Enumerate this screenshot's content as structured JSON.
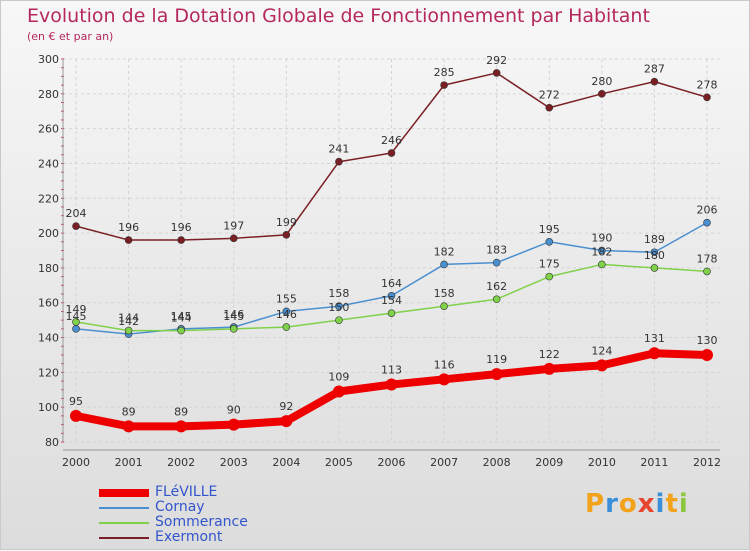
{
  "title": "Evolution de la Dotation Globale de Fonctionnement par Habitant",
  "subtitle": "(en € et par an)",
  "logo": {
    "text": "Proxiti",
    "colors": [
      "#f2a21b",
      "#3a8fd8",
      "#f2a21b",
      "#e8442f",
      "#3a8fd8",
      "#f2a21b",
      "#8cc63f"
    ]
  },
  "chart_data": {
    "type": "line",
    "x": [
      2000,
      2001,
      2002,
      2003,
      2004,
      2005,
      2006,
      2007,
      2008,
      2009,
      2010,
      2011,
      2012
    ],
    "ylim": [
      80,
      300
    ],
    "yticks": [
      80,
      100,
      120,
      140,
      160,
      180,
      200,
      220,
      240,
      260,
      280,
      300
    ],
    "grid": true,
    "legend_position": "bottom-left",
    "series": [
      {
        "name": "Exermont",
        "color": "#7a1f24",
        "values": [
          204,
          196,
          196,
          197,
          199,
          241,
          246,
          285,
          292,
          272,
          280,
          287,
          278
        ]
      },
      {
        "name": "Cornay",
        "color": "#4a8fcf",
        "values": [
          145,
          142,
          145,
          146,
          155,
          158,
          164,
          182,
          183,
          195,
          190,
          189,
          206
        ]
      },
      {
        "name": "Sommerance",
        "color": "#7fd14a",
        "values": [
          149,
          144,
          144,
          145,
          146,
          150,
          154,
          158,
          162,
          175,
          182,
          180,
          178
        ]
      },
      {
        "name": "FLéVILLE",
        "color": "#ee0000",
        "values": [
          95,
          89,
          89,
          90,
          92,
          109,
          113,
          116,
          119,
          122,
          124,
          131,
          130
        ]
      }
    ]
  },
  "legend": [
    {
      "name": "FLéVILLE",
      "color": "#ee0000"
    },
    {
      "name": "Cornay",
      "color": "#4a8fcf"
    },
    {
      "name": "Sommerance",
      "color": "#7fd14a"
    },
    {
      "name": "Exermont",
      "color": "#7a1f24"
    }
  ]
}
